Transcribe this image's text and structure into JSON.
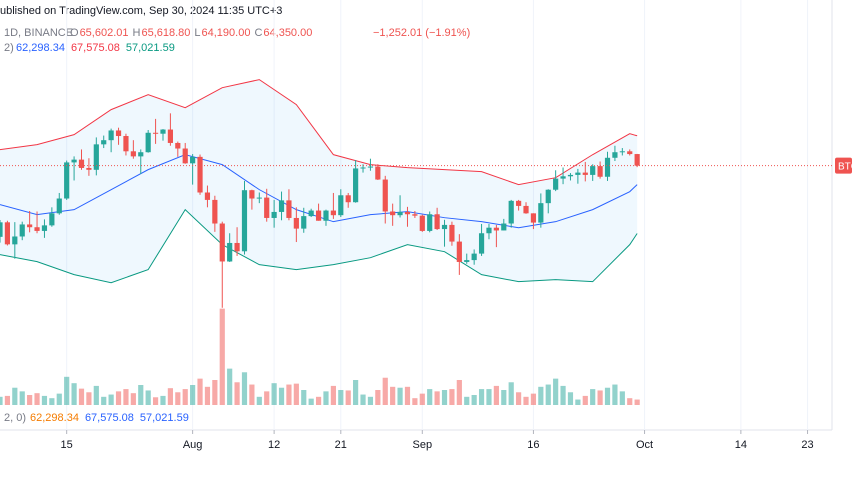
{
  "header": {
    "published": "ublished on TradingView.com, Sep 30, 2024 11:35 UTC+3",
    "interval": "1D, BINANCE",
    "ohlc": [
      {
        "label": "O",
        "value": "65,602.01"
      },
      {
        "label": "H",
        "value": "65,618.80"
      },
      {
        "label": "L",
        "value": "64,190.00"
      },
      {
        "label": "C",
        "value": "64,350.00"
      }
    ],
    "change": "−1,252.01 (−1.91%)",
    "bb_label": "2)",
    "bb_values": [
      "62,298.34",
      "67,575.08",
      "57,021.59"
    ],
    "vol_label": "2, 0)",
    "vol_values": [
      "62,298.34",
      "67,575.08",
      "57,021.59"
    ],
    "symbol_tag": "BTC"
  },
  "chart_data": {
    "type": "candlestick",
    "up_color": "#26a69a",
    "down_color": "#ef5350",
    "grid": true,
    "x": [
      "2024-07-06",
      "2024-07-07",
      "2024-07-08",
      "2024-07-09",
      "2024-07-10",
      "2024-07-11",
      "2024-07-12",
      "2024-07-13",
      "2024-07-14",
      "2024-07-15",
      "2024-07-16",
      "2024-07-17",
      "2024-07-18",
      "2024-07-19",
      "2024-07-20",
      "2024-07-21",
      "2024-07-22",
      "2024-07-23",
      "2024-07-24",
      "2024-07-25",
      "2024-07-26",
      "2024-07-27",
      "2024-07-28",
      "2024-07-29",
      "2024-07-30",
      "2024-07-31",
      "2024-08-01",
      "2024-08-02",
      "2024-08-03",
      "2024-08-04",
      "2024-08-05",
      "2024-08-06",
      "2024-08-07",
      "2024-08-08",
      "2024-08-09",
      "2024-08-10",
      "2024-08-11",
      "2024-08-12",
      "2024-08-13",
      "2024-08-14",
      "2024-08-15",
      "2024-08-16",
      "2024-08-17",
      "2024-08-18",
      "2024-08-19",
      "2024-08-20",
      "2024-08-21",
      "2024-08-22",
      "2024-08-23",
      "2024-08-24",
      "2024-08-25",
      "2024-08-26",
      "2024-08-27",
      "2024-08-28",
      "2024-08-29",
      "2024-08-30",
      "2024-08-31",
      "2024-09-01",
      "2024-09-02",
      "2024-09-03",
      "2024-09-04",
      "2024-09-05",
      "2024-09-06",
      "2024-09-07",
      "2024-09-08",
      "2024-09-09",
      "2024-09-10",
      "2024-09-11",
      "2024-09-12",
      "2024-09-13",
      "2024-09-14",
      "2024-09-15",
      "2024-09-16",
      "2024-09-17",
      "2024-09-18",
      "2024-09-19",
      "2024-09-20",
      "2024-09-21",
      "2024-09-22",
      "2024-09-23",
      "2024-09-24",
      "2024-09-25",
      "2024-09-26",
      "2024-09-27",
      "2024-09-28",
      "2024-09-29",
      "2024-09-30"
    ],
    "open": [
      56660,
      58230,
      55850,
      56700,
      58000,
      57700,
      57300,
      57900,
      59200,
      60800,
      64700,
      65000,
      64100,
      63900,
      66650,
      67100,
      68150,
      67550,
      65900,
      65350,
      65800,
      67900,
      67800,
      68250,
      66800,
      66200,
      64600,
      65300,
      61450,
      60650,
      58100,
      54000,
      56000,
      55100,
      61700,
      60800,
      60900,
      58700,
      59350,
      60600,
      58700,
      57550,
      58900,
      59500,
      58400,
      59500,
      59000,
      61150,
      60400,
      64050,
      64150,
      64250,
      62850,
      59400,
      59000,
      59350,
      59100,
      58950,
      57300,
      59100,
      57500,
      57950,
      56150,
      53950,
      54150,
      54850,
      57050,
      57650,
      57350,
      58100,
      60550,
      60000,
      59200,
      58200,
      60300,
      61750,
      62950,
      63200,
      63350,
      63600,
      63350,
      64300,
      63150,
      65200,
      65800,
      65900,
      65602.01
    ],
    "high": [
      58480,
      58400,
      58250,
      58300,
      59450,
      59400,
      58550,
      59850,
      61400,
      64900,
      65350,
      66100,
      65150,
      67400,
      67600,
      68350,
      68450,
      67800,
      67100,
      66100,
      68200,
      69400,
      68300,
      70000,
      66950,
      66800,
      65600,
      65550,
      62200,
      61100,
      58300,
      57050,
      57700,
      62700,
      61750,
      61450,
      61850,
      60650,
      61550,
      61800,
      59850,
      59800,
      59700,
      60250,
      59600,
      61400,
      61800,
      61400,
      64950,
      64500,
      65100,
      64500,
      63250,
      60250,
      61150,
      59900,
      59450,
      59050,
      59400,
      59800,
      58500,
      58300,
      56950,
      54850,
      55300,
      58050,
      58050,
      57950,
      58600,
      60650,
      60650,
      60400,
      59200,
      61350,
      61800,
      63850,
      64150,
      63550,
      64000,
      64750,
      64500,
      64800,
      65850,
      66500,
      66250,
      66100,
      65618.8
    ],
    "low": [
      56030,
      55730,
      54300,
      56300,
      57150,
      57050,
      56550,
      57750,
      59050,
      60650,
      62750,
      63900,
      63250,
      63300,
      66250,
      65800,
      66600,
      65450,
      65100,
      63450,
      65750,
      66700,
      67050,
      66500,
      65300,
      64550,
      62300,
      61200,
      59850,
      57200,
      49000,
      53950,
      54600,
      54750,
      59600,
      60300,
      58300,
      57650,
      58450,
      58450,
      56100,
      57100,
      58800,
      58400,
      57850,
      58600,
      58800,
      59800,
      60350,
      63600,
      63800,
      62800,
      58100,
      57850,
      58750,
      57750,
      58700,
      57200,
      57150,
      57400,
      55600,
      55700,
      52550,
      53750,
      53650,
      54600,
      56400,
      55550,
      57350,
      57650,
      59500,
      59150,
      57500,
      57650,
      59200,
      61600,
      62350,
      62750,
      62400,
      62650,
      62700,
      62950,
      62700,
      64850,
      65450,
      65450,
      64190
    ],
    "close": [
      58230,
      55850,
      56700,
      58000,
      57700,
      57300,
      57900,
      59200,
      60800,
      64700,
      65000,
      64100,
      63900,
      66650,
      67100,
      68150,
      67550,
      65900,
      65350,
      65800,
      67900,
      67800,
      68250,
      66800,
      66200,
      64600,
      65300,
      61450,
      60650,
      58100,
      54000,
      56000,
      55100,
      61700,
      60800,
      60900,
      58700,
      59350,
      60600,
      58700,
      57550,
      58900,
      59500,
      58400,
      59500,
      59000,
      61150,
      60400,
      64050,
      64150,
      64250,
      62850,
      59400,
      59000,
      59350,
      59100,
      58950,
      57300,
      59100,
      57500,
      57950,
      56150,
      53950,
      54150,
      54850,
      57050,
      57650,
      57350,
      58100,
      60550,
      60000,
      59200,
      58200,
      60300,
      61750,
      62950,
      63200,
      63350,
      63600,
      63350,
      64300,
      63150,
      65200,
      65800,
      65900,
      65602.01,
      64350
    ],
    "volume": [
      18000,
      20000,
      38000,
      30000,
      22000,
      26000,
      20000,
      15000,
      25000,
      62000,
      48000,
      36000,
      28000,
      42000,
      18000,
      23000,
      30000,
      35000,
      26000,
      44000,
      32000,
      17000,
      20000,
      37000,
      28000,
      35000,
      44000,
      58000,
      40000,
      55000,
      212000,
      80000,
      50000,
      72000,
      45000,
      18000,
      30000,
      48000,
      38000,
      45000,
      47000,
      33000,
      14000,
      18000,
      30000,
      42000,
      33000,
      32000,
      55000,
      23000,
      18000,
      33000,
      60000,
      40000,
      38000,
      40000,
      15000,
      25000,
      35000,
      30000,
      33000,
      35000,
      55000,
      18000,
      22000,
      35000,
      35000,
      42000,
      33000,
      50000,
      28000,
      18000,
      25000,
      40000,
      45000,
      58000,
      42000,
      28000,
      12000,
      20000,
      35000,
      32000,
      38000,
      45000,
      30000,
      15000,
      12000
    ],
    "bands": {
      "x": [
        "2024-07-06",
        "2024-07-11",
        "2024-07-16",
        "2024-07-21",
        "2024-07-26",
        "2024-07-31",
        "2024-08-05",
        "2024-08-10",
        "2024-08-15",
        "2024-08-20",
        "2024-08-25",
        "2024-08-30",
        "2024-09-04",
        "2024-09-09",
        "2024-09-14",
        "2024-09-19",
        "2024-09-24",
        "2024-09-29",
        "2024-09-30"
      ],
      "upper": [
        66080,
        66620,
        67700,
        70400,
        72020,
        70610,
        72770,
        73640,
        70940,
        65540,
        64460,
        64130,
        63920,
        63700,
        62300,
        63050,
        65540,
        67800,
        67575.08
      ],
      "middle": [
        60140,
        59060,
        59600,
        61760,
        63920,
        65540,
        64460,
        61760,
        59600,
        58300,
        59060,
        59380,
        58730,
        58300,
        57650,
        58300,
        59600,
        61540,
        62298.34
      ],
      "lower": [
        54740,
        53980,
        52580,
        51710,
        53120,
        59600,
        55820,
        53660,
        53120,
        53660,
        54410,
        55820,
        55060,
        52580,
        51820,
        52040,
        51820,
        55820,
        57021.59
      ],
      "upper_color": "#f23645",
      "middle_color": "#2962ff",
      "lower_color": "#089981",
      "fill_color": "rgba(33,150,243,0.07)"
    },
    "xlim": [
      "2024-07-06",
      "2024-10-29"
    ],
    "ylim": [
      38500,
      79000
    ],
    "vlim": [
      0,
      220000
    ],
    "xticks": [
      {
        "value": "2024-07-15",
        "label": "15"
      },
      {
        "value": "2024-08-01",
        "label": "Aug"
      },
      {
        "value": "2024-08-12",
        "label": "12"
      },
      {
        "value": "2024-08-21",
        "label": "21"
      },
      {
        "value": "2024-09-01",
        "label": "Sep"
      },
      {
        "value": "2024-09-16",
        "label": "16"
      },
      {
        "value": "2024-10-01",
        "label": "Oct"
      },
      {
        "value": "2024-10-14",
        "label": "14"
      },
      {
        "value": "2024-10-23",
        "label": "23"
      }
    ]
  }
}
